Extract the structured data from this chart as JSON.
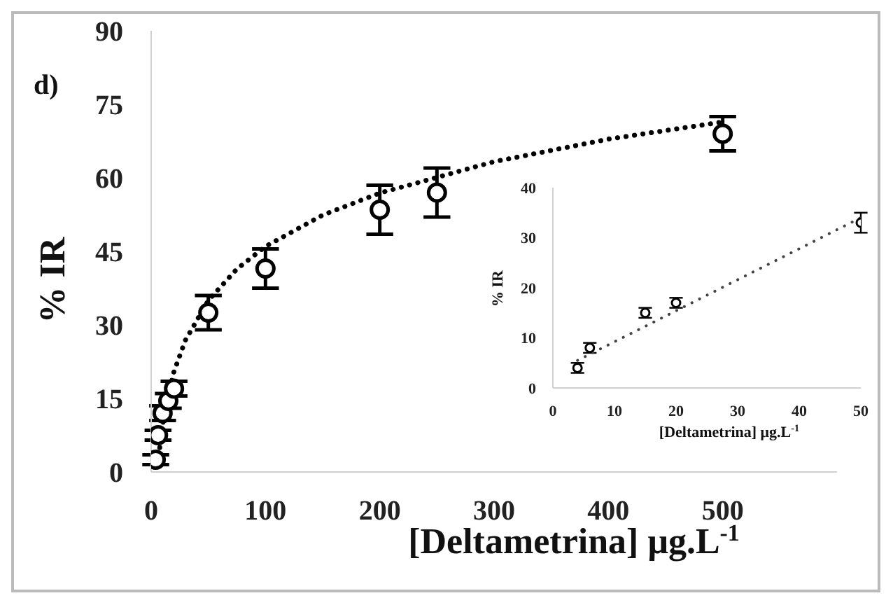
{
  "chart_data": [
    {
      "type": "scatter",
      "annotations": [
        "d)"
      ],
      "xlabel": "[Deltametrina] μg.L$^{-1}$",
      "ylabel": "% IR",
      "xlim": [
        0,
        600
      ],
      "xticks": [
        0,
        100,
        200,
        300,
        400,
        500
      ],
      "ylim": [
        0,
        90
      ],
      "yticks": [
        0,
        15,
        30,
        45,
        60,
        75,
        90
      ],
      "grid": false,
      "legend": false,
      "series": [
        {
          "marker": "circle",
          "color": "#000000",
          "x": [
            4,
            6,
            10,
            15,
            20,
            50,
            100,
            200,
            250,
            500
          ],
          "values": [
            2.5,
            7.5,
            12,
            14.5,
            17,
            32.5,
            41.5,
            53.5,
            57,
            69
          ],
          "errors": [
            1,
            1,
            1.5,
            1.5,
            1.5,
            3.5,
            4,
            5,
            5,
            3.5
          ]
        },
        {
          "type": "line",
          "marker": "none",
          "line_style": "dotted",
          "color": "#000000",
          "x": [
            6,
            8,
            10,
            15,
            20,
            30,
            50,
            75,
            100,
            150,
            200,
            300,
            400,
            500
          ],
          "values": [
            1.5,
            6.1,
            9.6,
            16,
            20.5,
            26.9,
            35,
            41.4,
            46,
            52.4,
            56.9,
            63.3,
            67.9,
            71.4
          ]
        }
      ]
    },
    {
      "type": "scatter",
      "xlabel": "[Deltametrina] μg.L$^{-1}$",
      "ylabel": "% IR",
      "xlim": [
        0,
        50
      ],
      "xticks": [
        0,
        10,
        20,
        30,
        40,
        50
      ],
      "ylim": [
        0,
        40
      ],
      "yticks": [
        0,
        10,
        20,
        30,
        40
      ],
      "grid": false,
      "legend": false,
      "series": [
        {
          "marker": "circle",
          "color": "#000000",
          "x": [
            4,
            6,
            15,
            20,
            50
          ],
          "values": [
            4,
            8,
            15,
            17,
            33
          ],
          "errors": [
            1,
            1,
            1,
            1,
            2
          ]
        },
        {
          "type": "line",
          "marker": "none",
          "line_style": "dotted",
          "color": "#444444",
          "x": [
            4,
            50
          ],
          "values": [
            5.5,
            34
          ]
        }
      ]
    }
  ]
}
